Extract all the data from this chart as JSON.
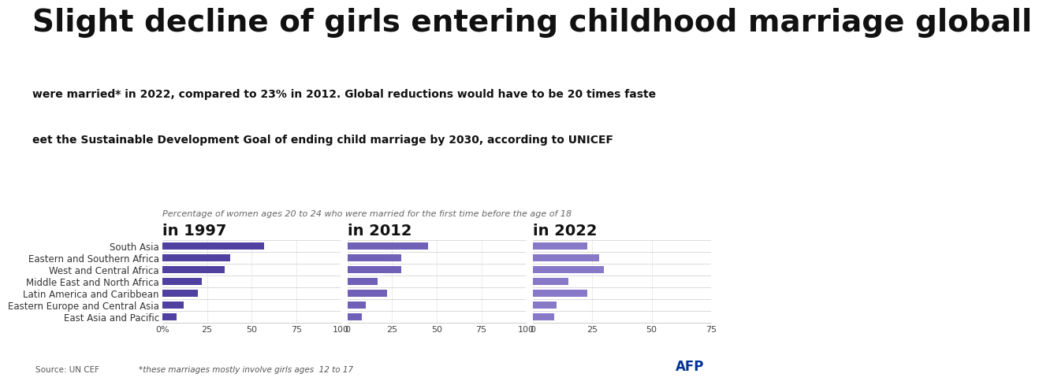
{
  "title": "Slight decline of girls entering childhood marriage globall",
  "subtitle_line1": "were married* in 2022, compared to 23% in 2012. Global reductions would have to be 20 times faste",
  "subtitle_line2": "eet the Sustainable Development Goal of ending child marriage by 2030, according to UNICEF",
  "axis_label": "Percentage of women ages 20 to 24 who were married for the first time before the age of 18",
  "categories": [
    "South Asia",
    "Eastern and Southern Africa",
    "West and Central Africa",
    "Middle East and North Africa",
    "Latin America and Caribbean",
    "Eastern Europe and Central Asia",
    "East Asia and Pacific"
  ],
  "years": [
    "in 1997",
    "in 2012",
    "in 2022"
  ],
  "values": {
    "1997": [
      57,
      38,
      35,
      22,
      20,
      12,
      8
    ],
    "2012": [
      45,
      30,
      30,
      17,
      22,
      10,
      8
    ],
    "2022": [
      23,
      28,
      30,
      15,
      23,
      10,
      9
    ]
  },
  "bar_colors": {
    "1997": "#5040a0",
    "2012": "#7060b8",
    "2022": "#8878c8"
  },
  "xlim_1997": [
    0,
    100
  ],
  "xlim_2012": [
    0,
    100
  ],
  "xlim_2022": [
    0,
    75
  ],
  "xticks_1997": [
    0,
    25,
    50,
    75,
    100
  ],
  "xticks_2012": [
    0,
    25,
    50,
    75,
    100
  ],
  "xticks_2022": [
    0,
    25,
    50,
    75
  ],
  "xticklabels_1997": [
    "0%",
    "25",
    "50",
    "75",
    "100"
  ],
  "xticklabels_2012": [
    "0",
    "25",
    "50",
    "75",
    "100"
  ],
  "xticklabels_2022": [
    "0",
    "25",
    "50",
    "75"
  ],
  "background_color": "#ffffff",
  "bar_height": 0.6,
  "grid_color": "#cccccc",
  "source_text": "Source: UN CEF",
  "footnote_text": "*these marriages mostly involve girls ages  12 to 17",
  "afp_text": "AFP",
  "title_fontsize": 28,
  "subtitle_fontsize": 10,
  "axis_label_fontsize": 8,
  "year_label_fontsize": 14,
  "category_fontsize": 8.5,
  "tick_fontsize": 8
}
